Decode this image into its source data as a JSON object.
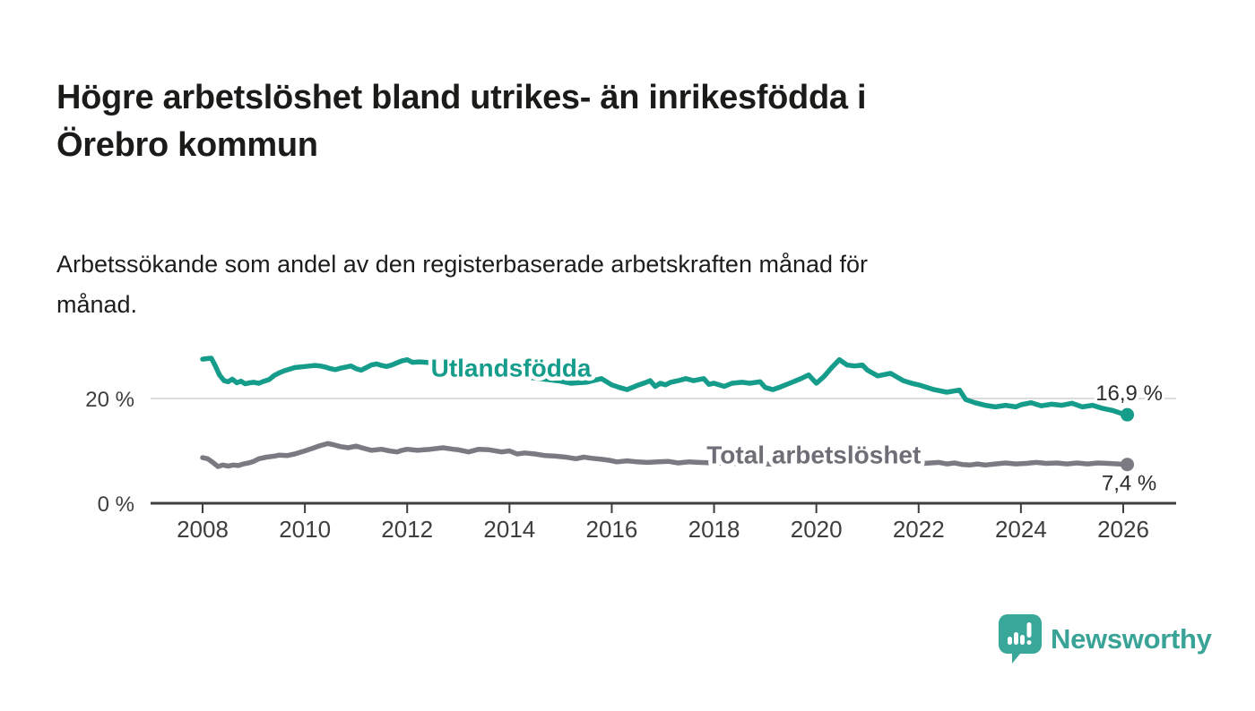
{
  "header": {
    "title": "Högre arbetslöshet bland utrikes- än inrikesfödda i Örebro kommun",
    "title_lines": [
      "Högre arbetslöshet bland utrikes- än inrikesfödda i",
      "Örebro kommun"
    ],
    "subtitle": "Arbetssökande som andel av den registerbaserade arbetskraften månad för månad.",
    "subtitle_lines": [
      "Arbetssökande som andel av den registerbaserade arbetskraften månad för",
      "månad."
    ]
  },
  "chart_data": {
    "type": "line",
    "title": "Högre arbetslöshet bland utrikes- än inrikesfödda i Örebro kommun",
    "subtitle": "Arbetssökande som andel av den registerbaserade arbetskraften månad för månad.",
    "x_axis": {
      "ticks": [
        2008,
        2010,
        2012,
        2014,
        2016,
        2018,
        2020,
        2022,
        2024,
        2026
      ],
      "tick_labels": [
        "2008",
        "2010",
        "2012",
        "2014",
        "2016",
        "2018",
        "2020",
        "2022",
        "2024",
        "2026"
      ],
      "domain": [
        2008,
        2026.1
      ]
    },
    "y_axis": {
      "unit": "%",
      "ylim": [
        0,
        30
      ],
      "ticks": [
        {
          "value": 0,
          "label": "0 %"
        },
        {
          "value": 20,
          "label": "20 %"
        }
      ],
      "gridlines": [
        20
      ],
      "grid_color": "#dcdcdc",
      "axis_color": "#3e3e3e"
    },
    "legend_position": "inline-labels",
    "series": [
      {
        "name": "Total arbetslöshet",
        "color": "#7b7a83",
        "label_color": "#6f6e77",
        "label_pos": {
          "year": 2019.95,
          "value": 9.2
        },
        "end_label": "7,4 %",
        "end_value": 7.4,
        "end_label_side": "below",
        "points": [
          [
            2008.0,
            8.7
          ],
          [
            2008.1,
            8.5
          ],
          [
            2008.2,
            7.8
          ],
          [
            2008.3,
            7.0
          ],
          [
            2008.4,
            7.3
          ],
          [
            2008.5,
            7.1
          ],
          [
            2008.6,
            7.3
          ],
          [
            2008.7,
            7.2
          ],
          [
            2008.8,
            7.5
          ],
          [
            2008.9,
            7.7
          ],
          [
            2009.0,
            8.0
          ],
          [
            2009.1,
            8.5
          ],
          [
            2009.25,
            8.8
          ],
          [
            2009.4,
            9.0
          ],
          [
            2009.5,
            9.2
          ],
          [
            2009.65,
            9.1
          ],
          [
            2009.8,
            9.4
          ],
          [
            2009.9,
            9.7
          ],
          [
            2010.0,
            10.0
          ],
          [
            2010.15,
            10.5
          ],
          [
            2010.3,
            11.0
          ],
          [
            2010.45,
            11.4
          ],
          [
            2010.55,
            11.2
          ],
          [
            2010.7,
            10.8
          ],
          [
            2010.85,
            10.6
          ],
          [
            2011.0,
            10.9
          ],
          [
            2011.15,
            10.5
          ],
          [
            2011.3,
            10.1
          ],
          [
            2011.5,
            10.3
          ],
          [
            2011.65,
            10.0
          ],
          [
            2011.8,
            9.8
          ],
          [
            2011.9,
            10.1
          ],
          [
            2012.0,
            10.3
          ],
          [
            2012.2,
            10.1
          ],
          [
            2012.45,
            10.3
          ],
          [
            2012.7,
            10.6
          ],
          [
            2012.9,
            10.3
          ],
          [
            2013.0,
            10.2
          ],
          [
            2013.2,
            9.8
          ],
          [
            2013.4,
            10.3
          ],
          [
            2013.6,
            10.2
          ],
          [
            2013.85,
            9.8
          ],
          [
            2014.0,
            10.0
          ],
          [
            2014.15,
            9.4
          ],
          [
            2014.3,
            9.6
          ],
          [
            2014.5,
            9.4
          ],
          [
            2014.7,
            9.1
          ],
          [
            2014.9,
            9.0
          ],
          [
            2015.1,
            8.8
          ],
          [
            2015.3,
            8.5
          ],
          [
            2015.45,
            8.8
          ],
          [
            2015.6,
            8.6
          ],
          [
            2015.8,
            8.4
          ],
          [
            2015.95,
            8.2
          ],
          [
            2016.1,
            7.9
          ],
          [
            2016.3,
            8.1
          ],
          [
            2016.5,
            7.9
          ],
          [
            2016.7,
            7.8
          ],
          [
            2016.9,
            7.9
          ],
          [
            2017.1,
            8.0
          ],
          [
            2017.3,
            7.7
          ],
          [
            2017.5,
            7.9
          ],
          [
            2017.7,
            7.8
          ],
          [
            2018.0,
            7.7
          ],
          [
            2018.4,
            7.6
          ],
          [
            2018.8,
            7.5
          ],
          [
            2019.2,
            7.5
          ],
          [
            2019.6,
            7.6
          ],
          [
            2020.0,
            8.0
          ],
          [
            2020.4,
            8.8
          ],
          [
            2020.7,
            8.9
          ],
          [
            2021.0,
            8.5
          ],
          [
            2021.4,
            8.0
          ],
          [
            2021.8,
            7.7
          ],
          [
            2022.1,
            7.6
          ],
          [
            2022.4,
            7.8
          ],
          [
            2022.55,
            7.5
          ],
          [
            2022.7,
            7.7
          ],
          [
            2022.85,
            7.4
          ],
          [
            2023.0,
            7.3
          ],
          [
            2023.15,
            7.5
          ],
          [
            2023.3,
            7.3
          ],
          [
            2023.5,
            7.5
          ],
          [
            2023.7,
            7.7
          ],
          [
            2023.9,
            7.5
          ],
          [
            2024.1,
            7.6
          ],
          [
            2024.3,
            7.8
          ],
          [
            2024.5,
            7.6
          ],
          [
            2024.7,
            7.7
          ],
          [
            2024.9,
            7.5
          ],
          [
            2025.1,
            7.7
          ],
          [
            2025.3,
            7.5
          ],
          [
            2025.5,
            7.7
          ],
          [
            2025.7,
            7.6
          ],
          [
            2025.9,
            7.5
          ],
          [
            2026.08,
            7.4
          ]
        ]
      },
      {
        "name": "Utlandsfödda",
        "color": "#169c8b",
        "label_color": "#169c8b",
        "label_pos": {
          "year": 2014.03,
          "value": 25.8
        },
        "end_label": "16,9 %",
        "end_value": 16.9,
        "end_label_side": "above",
        "points": [
          [
            2008.0,
            27.5
          ],
          [
            2008.08,
            27.6
          ],
          [
            2008.17,
            27.7
          ],
          [
            2008.25,
            26.2
          ],
          [
            2008.33,
            24.5
          ],
          [
            2008.42,
            23.4
          ],
          [
            2008.5,
            23.2
          ],
          [
            2008.58,
            23.7
          ],
          [
            2008.67,
            23.0
          ],
          [
            2008.75,
            23.3
          ],
          [
            2008.83,
            22.8
          ],
          [
            2008.92,
            23.0
          ],
          [
            2009.0,
            23.1
          ],
          [
            2009.1,
            22.9
          ],
          [
            2009.2,
            23.3
          ],
          [
            2009.3,
            23.6
          ],
          [
            2009.4,
            24.4
          ],
          [
            2009.5,
            24.9
          ],
          [
            2009.6,
            25.3
          ],
          [
            2009.7,
            25.6
          ],
          [
            2009.8,
            25.9
          ],
          [
            2009.9,
            26.0
          ],
          [
            2010.0,
            26.1
          ],
          [
            2010.1,
            26.2
          ],
          [
            2010.2,
            26.3
          ],
          [
            2010.3,
            26.2
          ],
          [
            2010.4,
            26.0
          ],
          [
            2010.5,
            25.7
          ],
          [
            2010.6,
            25.5
          ],
          [
            2010.7,
            25.8
          ],
          [
            2010.8,
            26.0
          ],
          [
            2010.9,
            26.2
          ],
          [
            2011.0,
            25.7
          ],
          [
            2011.1,
            25.4
          ],
          [
            2011.2,
            25.9
          ],
          [
            2011.3,
            26.4
          ],
          [
            2011.4,
            26.6
          ],
          [
            2011.5,
            26.3
          ],
          [
            2011.6,
            26.1
          ],
          [
            2011.7,
            26.4
          ],
          [
            2011.8,
            26.8
          ],
          [
            2011.9,
            27.2
          ],
          [
            2012.0,
            27.4
          ],
          [
            2012.1,
            26.9
          ],
          [
            2012.25,
            27.0
          ],
          [
            2012.5,
            26.8
          ],
          [
            2012.75,
            26.4
          ],
          [
            2013.0,
            26.0
          ],
          [
            2013.25,
            25.6
          ],
          [
            2013.5,
            25.2
          ],
          [
            2013.75,
            24.9
          ],
          [
            2014.0,
            24.6
          ],
          [
            2014.25,
            24.2
          ],
          [
            2014.5,
            23.9
          ],
          [
            2014.75,
            23.6
          ],
          [
            2015.0,
            23.3
          ],
          [
            2015.2,
            22.9
          ],
          [
            2015.5,
            23.1
          ],
          [
            2015.8,
            23.8
          ],
          [
            2016.0,
            22.6
          ],
          [
            2016.15,
            22.1
          ],
          [
            2016.3,
            21.7
          ],
          [
            2016.5,
            22.5
          ],
          [
            2016.65,
            23.0
          ],
          [
            2016.75,
            23.4
          ],
          [
            2016.85,
            22.3
          ],
          [
            2016.95,
            22.9
          ],
          [
            2017.05,
            22.6
          ],
          [
            2017.15,
            23.1
          ],
          [
            2017.3,
            23.4
          ],
          [
            2017.45,
            23.8
          ],
          [
            2017.6,
            23.4
          ],
          [
            2017.8,
            23.8
          ],
          [
            2017.9,
            22.7
          ],
          [
            2018.0,
            22.9
          ],
          [
            2018.2,
            22.3
          ],
          [
            2018.35,
            22.9
          ],
          [
            2018.55,
            23.1
          ],
          [
            2018.7,
            22.9
          ],
          [
            2018.9,
            23.2
          ],
          [
            2019.0,
            22.1
          ],
          [
            2019.15,
            21.7
          ],
          [
            2019.3,
            22.2
          ],
          [
            2019.5,
            23.0
          ],
          [
            2019.7,
            23.8
          ],
          [
            2019.85,
            24.5
          ],
          [
            2020.0,
            22.9
          ],
          [
            2020.15,
            24.2
          ],
          [
            2020.3,
            25.9
          ],
          [
            2020.45,
            27.4
          ],
          [
            2020.6,
            26.4
          ],
          [
            2020.75,
            26.2
          ],
          [
            2020.9,
            26.4
          ],
          [
            2021.0,
            25.4
          ],
          [
            2021.2,
            24.3
          ],
          [
            2021.45,
            24.8
          ],
          [
            2021.7,
            23.4
          ],
          [
            2021.9,
            22.8
          ],
          [
            2022.0,
            22.6
          ],
          [
            2022.3,
            21.7
          ],
          [
            2022.55,
            21.2
          ],
          [
            2022.8,
            21.6
          ],
          [
            2022.92,
            19.8
          ],
          [
            2023.1,
            19.2
          ],
          [
            2023.3,
            18.7
          ],
          [
            2023.5,
            18.4
          ],
          [
            2023.7,
            18.7
          ],
          [
            2023.9,
            18.4
          ],
          [
            2024.0,
            18.8
          ],
          [
            2024.2,
            19.2
          ],
          [
            2024.4,
            18.6
          ],
          [
            2024.6,
            18.9
          ],
          [
            2024.8,
            18.7
          ],
          [
            2025.0,
            19.1
          ],
          [
            2025.2,
            18.4
          ],
          [
            2025.4,
            18.7
          ],
          [
            2025.6,
            18.1
          ],
          [
            2025.8,
            17.7
          ],
          [
            2025.95,
            17.2
          ],
          [
            2026.08,
            16.9
          ]
        ]
      }
    ]
  },
  "branding": {
    "logo_text": "Newsworthy",
    "logo_color": "#3aa79b",
    "logo_text_color": "#38a396",
    "icon": "newsworthy-speech-bubble-chart-icon"
  }
}
